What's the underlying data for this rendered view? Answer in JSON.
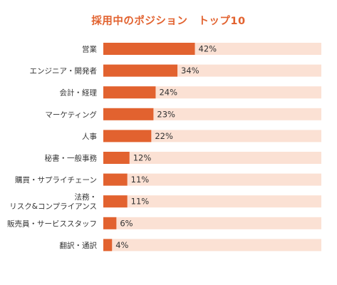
{
  "chart_data": {
    "type": "bar",
    "orientation": "horizontal",
    "title": "採用中のポジション　トップ10",
    "categories": [
      "営業",
      "エンジニア・開発者",
      "会計・経理",
      "マーケティング",
      "人事",
      "秘書・一般事務",
      "購買・サプライチェーン",
      "法務・\nリスク&コンプライアンス",
      "販売員・サービススタッフ",
      "翻訳・通訳"
    ],
    "values": [
      42,
      34,
      24,
      23,
      22,
      12,
      11,
      11,
      6,
      4
    ],
    "value_labels": [
      "42%",
      "34%",
      "24%",
      "23%",
      "22%",
      "12%",
      "11%",
      "11%",
      "6%",
      "4%"
    ],
    "xlim": [
      0,
      100
    ],
    "grid": false,
    "colors": {
      "bar": "#e2622f",
      "track": "#fbe1d4",
      "title": "#e2622f",
      "label": "#333333"
    }
  }
}
